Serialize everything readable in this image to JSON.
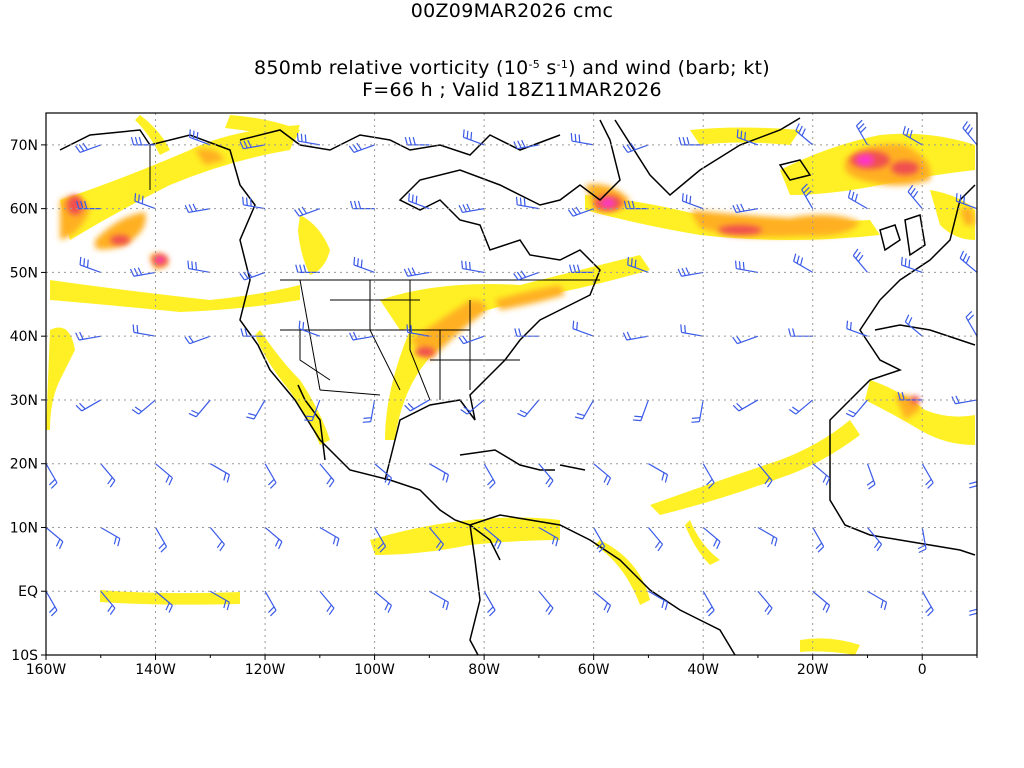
{
  "title": {
    "line1": "00Z09MAR2026 cmc",
    "line2_prefix": "850mb relative vorticity (10",
    "line2_exp1": "-5",
    "line2_mid": " s",
    "line2_exp2": "-1",
    "line2_suffix": ") and wind (barb; kt)",
    "line3": "F=66 h ; Valid 18Z11MAR2026"
  },
  "axes": {
    "lon_labels": [
      "160W",
      "140W",
      "120W",
      "100W",
      "80W",
      "60W",
      "40W",
      "20W",
      "0"
    ],
    "lat_labels": [
      "70N",
      "60N",
      "50N",
      "40N",
      "30N",
      "20N",
      "10N",
      "EQ",
      "10S"
    ],
    "lon_range": [
      -160,
      10
    ],
    "lat_range": [
      -10,
      75
    ]
  },
  "colors": {
    "shade_yellow": "#ffee00",
    "shade_light_yellow": "#fff89a",
    "shade_orange": "#ffb020",
    "shade_red": "#f05050",
    "shade_magenta": "#ff33cc",
    "barb": "#3a5ae8",
    "coast": "#000000",
    "grid": "#9a9a9a"
  }
}
